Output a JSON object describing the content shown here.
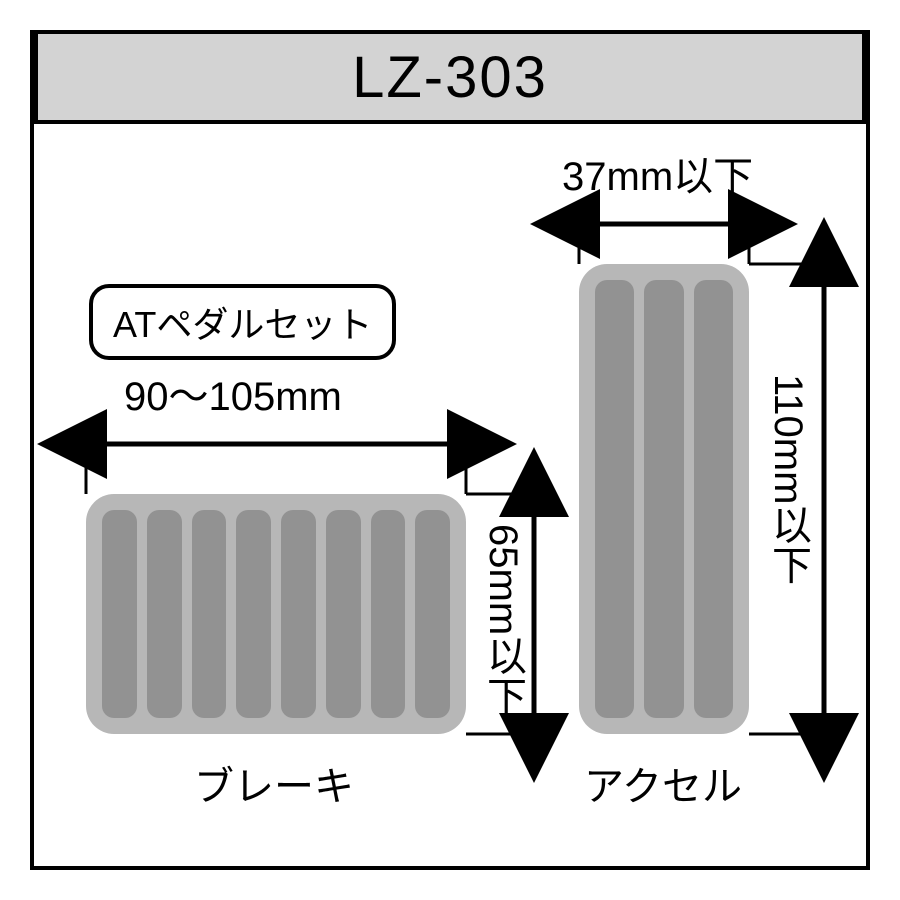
{
  "model": "LZ-303",
  "badge": "ATペダルセット",
  "brake": {
    "widthLabel": "90～105mm",
    "heightLabel": "65mm以下",
    "caption": "ブレーキ",
    "ribCount": 8,
    "bodyColor": "#b7b7b7",
    "ribColor": "#929292"
  },
  "accel": {
    "widthLabel": "37mm以下",
    "heightLabel": "110mm以下",
    "caption": "アクセル",
    "ribCount": 3,
    "bodyColor": "#b7b7b7",
    "ribColor": "#929292"
  },
  "colors": {
    "titlebar": "#d3d3d3",
    "border": "#000000"
  }
}
